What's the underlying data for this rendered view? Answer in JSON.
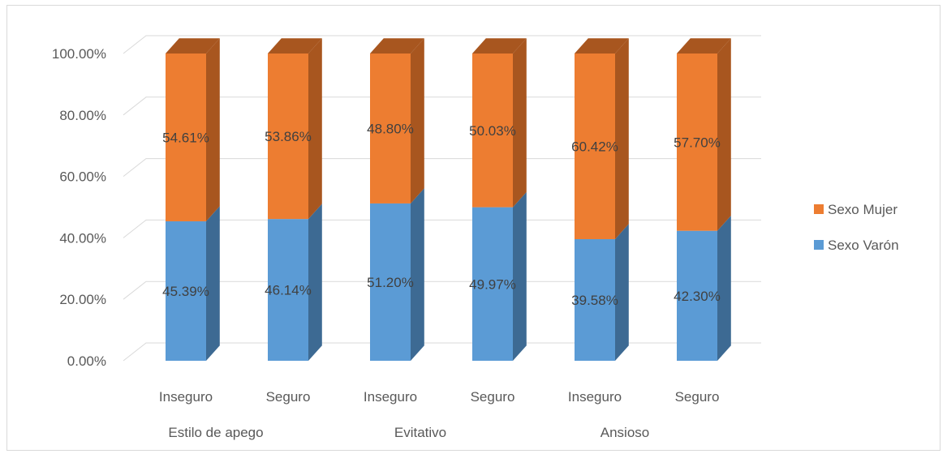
{
  "chart_data": {
    "type": "bar",
    "stacked": true,
    "three_d": true,
    "categories": [
      "Inseguro",
      "Seguro",
      "Inseguro",
      "Seguro",
      "Inseguro",
      "Seguro"
    ],
    "groups": [
      "Estilo de apego",
      "Evitativo",
      "Ansioso"
    ],
    "series": [
      {
        "name": "Sexo Varón",
        "color": "#5b9bd5",
        "side_color": "#3d6a93",
        "values": [
          45.39,
          46.14,
          51.2,
          49.97,
          39.58,
          42.3
        ],
        "labels": [
          "45.39%",
          "46.14%",
          "51.20%",
          "49.97%",
          "39.58%",
          "42.30%"
        ]
      },
      {
        "name": "Sexo Mujer",
        "color": "#ed7d31",
        "side_color": "#a8561f",
        "values": [
          54.61,
          53.86,
          48.8,
          50.03,
          60.42,
          57.7
        ],
        "labels": [
          "54.61%",
          "53.86%",
          "48.80%",
          "50.03%",
          "60.42%",
          "57.70%"
        ]
      }
    ],
    "y_ticks": [
      "0.00%",
      "20.00%",
      "40.00%",
      "60.00%",
      "80.00%",
      "100.00%"
    ],
    "ylim": [
      0,
      100
    ],
    "grid": true,
    "legend_position": "right"
  }
}
